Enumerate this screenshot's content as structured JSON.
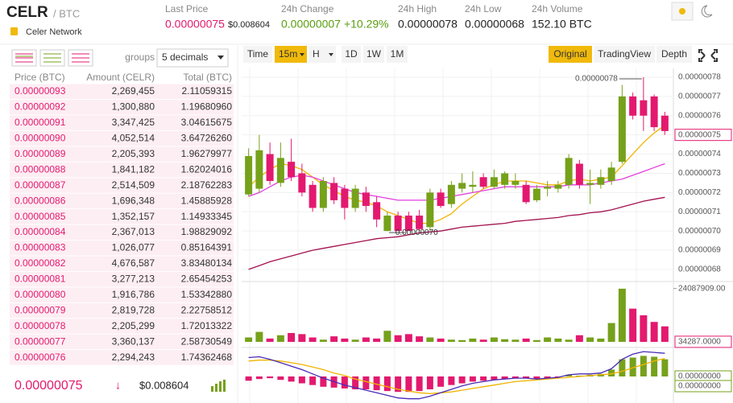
{
  "header": {
    "symbol": "CELR",
    "quote": "/ BTC",
    "name": "Celer Network",
    "stats": [
      {
        "label": "Last Price",
        "value": "0.00000075",
        "sub": "$0.008604"
      },
      {
        "label": "24h Change",
        "value": "0.00000007",
        "sub": "+10.29%"
      },
      {
        "label": "24h High",
        "value": "0.00000078"
      },
      {
        "label": "24h Low",
        "value": "0.00000068"
      },
      {
        "label": "24h Volume",
        "value": "152.10 BTC"
      }
    ]
  },
  "orderbook": {
    "groups_label": "groups",
    "decimals": "5 decimals",
    "columns": [
      "Price (BTC)",
      "Amount (CELR)",
      "Total (BTC)"
    ],
    "rows": [
      [
        "0.00000093",
        "2,269,455",
        "2.11059315"
      ],
      [
        "0.00000092",
        "1,300,880",
        "1.19680960"
      ],
      [
        "0.00000091",
        "3,347,425",
        "3.04615675"
      ],
      [
        "0.00000090",
        "4,052,514",
        "3.64726260"
      ],
      [
        "0.00000089",
        "2,205,393",
        "1.96279977"
      ],
      [
        "0.00000088",
        "1,841,182",
        "1.62024016"
      ],
      [
        "0.00000087",
        "2,514,509",
        "2.18762283"
      ],
      [
        "0.00000086",
        "1,696,348",
        "1.45885928"
      ],
      [
        "0.00000085",
        "1,352,157",
        "1.14933345"
      ],
      [
        "0.00000084",
        "2,367,013",
        "1.98829092"
      ],
      [
        "0.00000083",
        "1,026,077",
        "0.85164391"
      ],
      [
        "0.00000082",
        "4,676,587",
        "3.83480134"
      ],
      [
        "0.00000081",
        "3,277,213",
        "2.65454253"
      ],
      [
        "0.00000080",
        "1,916,786",
        "1.53342880"
      ],
      [
        "0.00000079",
        "2,819,728",
        "2.22758512"
      ],
      [
        "0.00000078",
        "2,205,299",
        "1.72013322"
      ],
      [
        "0.00000077",
        "3,360,137",
        "2.58730549"
      ],
      [
        "0.00000076",
        "2,294,243",
        "1.74362468"
      ]
    ],
    "last_price": "0.00000075",
    "arrow": "↓",
    "last_usd": "$0.008604"
  },
  "toolbar": {
    "intervals": [
      "Time",
      "15m",
      "H",
      "1D",
      "1W",
      "1M"
    ],
    "views": [
      "Original",
      "TradingView",
      "Depth"
    ]
  },
  "chart_data": [
    {
      "type": "candlestick",
      "up_color": "#76a11b",
      "down_color": "#e3196f",
      "open": [
        7.19e-07,
        7.22e-07,
        7.4e-07,
        7.25e-07,
        7.36e-07,
        7.3e-07,
        7.24e-07,
        7.12e-07,
        7.25e-07,
        7.22e-07,
        7.12e-07,
        7.2e-07,
        7.15e-07,
        7e-07,
        7.08e-07,
        7.08e-07,
        7.08e-07,
        7.02e-07,
        7.2e-07,
        7.14e-07,
        7.22e-07,
        7.23e-07,
        7.28e-07,
        7.23e-07,
        7.24e-07,
        7.24e-07,
        7.24e-07,
        7.16e-07,
        7.22e-07,
        7.22e-07,
        7.24e-07,
        7.35e-07,
        7.24e-07,
        7.24e-07,
        7.26e-07,
        7.36e-07,
        7.7e-07,
        7.68e-07,
        7.7e-07,
        7.6e-07
      ],
      "high": [
        7.43e-07,
        7.5e-07,
        7.46e-07,
        7.46e-07,
        7.48e-07,
        7.35e-07,
        7.26e-07,
        7.28e-07,
        7.28e-07,
        7.24e-07,
        7.24e-07,
        7.23e-07,
        7.18e-07,
        7.1e-07,
        7.1e-07,
        7.1e-07,
        7.11e-07,
        7.22e-07,
        7.22e-07,
        7.26e-07,
        7.3e-07,
        7.31e-07,
        7.3e-07,
        7.32e-07,
        7.31e-07,
        7.3e-07,
        7.26e-07,
        7.24e-07,
        7.26e-07,
        7.26e-07,
        7.4e-07,
        7.37e-07,
        7.32e-07,
        7.32e-07,
        7.36e-07,
        7.76e-07,
        7.72e-07,
        7.8e-07,
        7.71e-07,
        7.62e-07
      ],
      "low": [
        7.18e-07,
        7.2e-07,
        7.24e-07,
        7.23e-07,
        7.26e-07,
        7.18e-07,
        7.1e-07,
        7.1e-07,
        7.14e-07,
        7.06e-07,
        7.1e-07,
        7.1e-07,
        7.02e-07,
        7e-07,
        7e-07,
        7e-07,
        7e-07,
        7e-07,
        7.12e-07,
        7.12e-07,
        7.2e-07,
        7.2e-07,
        7.22e-07,
        7.22e-07,
        7.22e-07,
        7.22e-07,
        7.14e-07,
        7.15e-07,
        7.18e-07,
        7.2e-07,
        7.22e-07,
        7.22e-07,
        7.14e-07,
        7.22e-07,
        7.24e-07,
        7.35e-07,
        7.58e-07,
        7.52e-07,
        7.52e-07,
        7.5e-07
      ],
      "close": [
        7.39e-07,
        7.42e-07,
        7.26e-07,
        7.38e-07,
        7.28e-07,
        7.2e-07,
        7.12e-07,
        7.26e-07,
        7.16e-07,
        7.12e-07,
        7.22e-07,
        7.13e-07,
        7.06e-07,
        7.08e-07,
        7e-07,
        7e-07,
        7.01e-07,
        7.2e-07,
        7.13e-07,
        7.24e-07,
        7.25e-07,
        7.24e-07,
        7.23e-07,
        7.28e-07,
        7.3e-07,
        7.26e-07,
        7.15e-07,
        7.22e-07,
        7.23e-07,
        7.24e-07,
        7.38e-07,
        7.24e-07,
        7.25e-07,
        7.28e-07,
        7.33e-07,
        7.7e-07,
        7.6e-07,
        7.6e-07,
        7.54e-07,
        7.52e-07
      ],
      "ma_lines": [
        {
          "color": "#f0b400",
          "values": [
            7.23e-07,
            7.28e-07,
            7.32e-07,
            7.35e-07,
            7.34e-07,
            7.32e-07,
            7.28e-07,
            7.24e-07,
            7.21e-07,
            7.18e-07,
            7.16e-07,
            7.15e-07,
            7.13e-07,
            7.1e-07,
            7.08e-07,
            7.06e-07,
            7.04e-07,
            7.04e-07,
            7.06e-07,
            7.09e-07,
            7.14e-07,
            7.18e-07,
            7.22e-07,
            7.24e-07,
            7.26e-07,
            7.26e-07,
            7.26e-07,
            7.25e-07,
            7.24e-07,
            7.24e-07,
            7.26e-07,
            7.27e-07,
            7.26e-07,
            7.27e-07,
            7.28e-07,
            7.34e-07,
            7.4e-07,
            7.46e-07,
            7.51e-07,
            7.55e-07
          ]
        },
        {
          "color": "#e23fe0",
          "values": [
            7.18e-07,
            7.2e-07,
            7.23e-07,
            7.26e-07,
            7.28e-07,
            7.29e-07,
            7.28e-07,
            7.26e-07,
            7.24e-07,
            7.22e-07,
            7.2e-07,
            7.19e-07,
            7.18e-07,
            7.17e-07,
            7.16e-07,
            7.16e-07,
            7.16e-07,
            7.16e-07,
            7.17e-07,
            7.18e-07,
            7.19e-07,
            7.2e-07,
            7.21e-07,
            7.22e-07,
            7.23e-07,
            7.23e-07,
            7.23e-07,
            7.23e-07,
            7.23e-07,
            7.23e-07,
            7.24e-07,
            7.24e-07,
            7.24e-07,
            7.25e-07,
            7.26e-07,
            7.27e-07,
            7.29e-07,
            7.31e-07,
            7.33e-07,
            7.35e-07
          ]
        },
        {
          "color": "#a3114f",
          "values": [
            6.8e-07,
            6.82e-07,
            6.84e-07,
            6.855e-07,
            6.87e-07,
            6.885e-07,
            6.9e-07,
            6.91e-07,
            6.92e-07,
            6.93e-07,
            6.94e-07,
            6.95e-07,
            6.96e-07,
            6.965e-07,
            6.97e-07,
            6.98e-07,
            6.99e-07,
            6.995e-07,
            7e-07,
            7.01e-07,
            7.02e-07,
            7.025e-07,
            7.03e-07,
            7.035e-07,
            7.04e-07,
            7.05e-07,
            7.055e-07,
            7.06e-07,
            7.065e-07,
            7.07e-07,
            7.08e-07,
            7.085e-07,
            7.095e-07,
            7.1e-07,
            7.11e-07,
            7.125e-07,
            7.14e-07,
            7.155e-07,
            7.165e-07,
            7.175e-07
          ]
        }
      ],
      "ylim": [
        6.737e-07,
        7.846e-07
      ],
      "yticks": [
        {
          "value": 7.8e-07,
          "label": "0.00000078"
        },
        {
          "value": 7.7e-07,
          "label": "0.00000077"
        },
        {
          "value": 7.6e-07,
          "label": "0.00000076"
        },
        {
          "value": 7.5e-07,
          "label": "0.00000075"
        },
        {
          "value": 7.4e-07,
          "label": "0.00000074"
        },
        {
          "value": 7.3e-07,
          "label": "0.00000073"
        },
        {
          "value": 7.2e-07,
          "label": "0.00000072"
        },
        {
          "value": 7.1e-07,
          "label": "0.00000071"
        },
        {
          "value": 7e-07,
          "label": "0.00000070"
        },
        {
          "value": 6.9e-07,
          "label": "0.00000069"
        },
        {
          "value": 6.8e-07,
          "label": "0.00000068"
        }
      ],
      "high_label": "0.00000078",
      "low_label": "0.00000070",
      "last_value": 7.5e-07,
      "last_label": "0.00000075",
      "grid": true
    },
    {
      "type": "bar",
      "values": [
        2000000,
        4500000,
        1500000,
        3000000,
        4000000,
        3500000,
        2000000,
        1000000,
        2500000,
        1500000,
        1000000,
        2000000,
        1500000,
        5000000,
        3000000,
        3500000,
        2500000,
        2000000,
        1500000,
        1000000,
        800000,
        1500000,
        1000000,
        2000000,
        1200000,
        1000000,
        1500000,
        800000,
        2000000,
        1500000,
        1000000,
        3000000,
        2000000,
        1500000,
        8500000,
        24000000,
        15000000,
        12000000,
        9000000,
        7000000
      ],
      "ylim": [
        0,
        26500000
      ],
      "yticks": [
        {
          "value": 24087909,
          "label": "24087909.00"
        },
        {
          "value": 34287,
          "label": "34287.0000"
        }
      ]
    },
    {
      "type": "macd",
      "dif_color": "#4a2bb5",
      "dea_color": "#f0b400",
      "dif": [
        2.2e-09,
        2.3e-09,
        2e-09,
        1.6e-09,
        1.2e-09,
        8e-10,
        3e-10,
        -2e-10,
        -6e-10,
        -1e-09,
        -1.3e-09,
        -1.6e-09,
        -1.9e-09,
        -2.2e-09,
        -2.5e-09,
        -2.6e-09,
        -2.6e-09,
        -2.3e-09,
        -1.9e-09,
        -1.5e-09,
        -1.1e-09,
        -8e-10,
        -6e-10,
        -4e-10,
        -3e-10,
        -2e-10,
        -2e-10,
        -3e-10,
        -2e-10,
        -1e-10,
        2e-10,
        3e-10,
        3e-10,
        4e-10,
        9e-10,
        2e-09,
        2.6e-09,
        2.9e-09,
        2.8e-09,
        2.7e-09
      ],
      "dea": [
        1.8e-09,
        1.9e-09,
        1.9e-09,
        1.8e-09,
        1.6e-09,
        1.4e-09,
        1.1e-09,
        8e-10,
        4e-10,
        1e-10,
        -3e-10,
        -6e-10,
        -9e-10,
        -1.2e-09,
        -1.5e-09,
        -1.7e-09,
        -1.9e-09,
        -2e-09,
        -1.9e-09,
        -1.8e-09,
        -1.6e-09,
        -1.4e-09,
        -1.2e-09,
        -1e-09,
        -8e-10,
        -6e-10,
        -5e-10,
        -4e-10,
        -3e-10,
        -2e-10,
        -1e-10,
        0,
        1e-10,
        2e-10,
        3e-10,
        6e-10,
        1e-09,
        1.4e-09,
        1.8e-09,
        2.1e-09
      ],
      "hist": [
        -5e-10,
        -3e-10,
        -2e-10,
        -4e-10,
        -6e-10,
        -8e-10,
        -1e-09,
        -1.2e-09,
        -1.3e-09,
        -1.4e-09,
        -1.5e-09,
        -1.5e-09,
        -1.6e-09,
        -1.7e-09,
        -1.8e-09,
        -1.8e-09,
        -1.7e-09,
        -1.5e-09,
        -1.2e-09,
        -1e-09,
        -8e-10,
        -6e-10,
        -5e-10,
        -4e-10,
        -3e-10,
        -2e-10,
        -2e-10,
        -3e-10,
        -2e-10,
        -1e-10,
        2e-10,
        1e-10,
        2e-10,
        3e-10,
        8e-10,
        2e-09,
        2.2e-09,
        2.4e-09,
        2.3e-09,
        2e-09
      ],
      "ylim": [
        -3e-09,
        3e-09
      ],
      "yticks": [
        {
          "value": 0,
          "label": "0.00000000"
        }
      ],
      "last_label": "0.00000000"
    }
  ]
}
